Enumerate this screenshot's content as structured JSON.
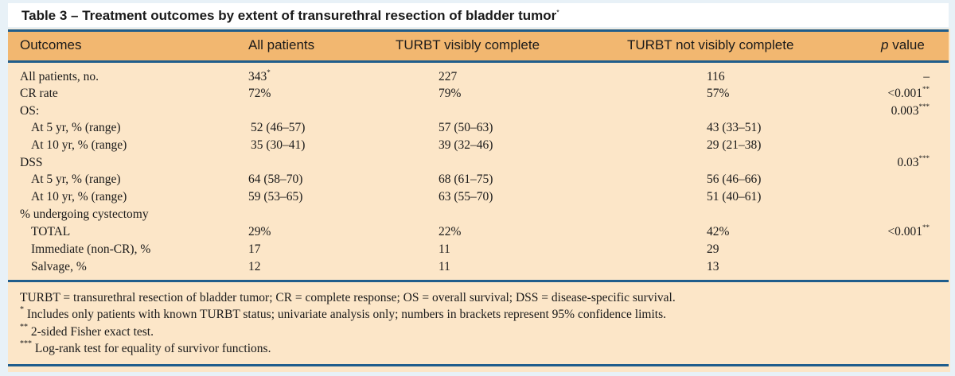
{
  "title": "Table 3 – Treatment outcomes by extent of transurethral resection of bladder tumor",
  "title_marker": "*",
  "headers": {
    "outcomes": "Outcomes",
    "all": "All patients",
    "complete": "TURBT visibly complete",
    "not_complete": "TURBT not visibly complete",
    "p_italic": "p",
    "p_rest": "value"
  },
  "rows": [
    {
      "label": "All patients, no.",
      "all": "343",
      "all_sup": "*",
      "complete": "227",
      "not_complete": "116",
      "p": "–",
      "p_sup": ""
    },
    {
      "label": "CR rate",
      "all": "72%",
      "all_sup": "",
      "complete": "79%",
      "not_complete": "57%",
      "p": "<0.001",
      "p_sup": "**"
    },
    {
      "label": "OS:",
      "all": "",
      "all_sup": "",
      "complete": "",
      "not_complete": "",
      "p": "0.003",
      "p_sup": "***"
    },
    {
      "label": "At 5 yr, % (range)",
      "all": "52 (46–57)",
      "all_sup": "",
      "complete": "57 (50–63)",
      "not_complete": "43 (33–51)",
      "p": "",
      "p_sup": ""
    },
    {
      "label": "At 10 yr, % (range)",
      "all": "35 (30–41)",
      "all_sup": "",
      "complete": "39 (32–46)",
      "not_complete": "29 (21–38)",
      "p": "",
      "p_sup": ""
    },
    {
      "label": "DSS",
      "all": "",
      "all_sup": "",
      "complete": "",
      "not_complete": "",
      "p": "0.03",
      "p_sup": "***"
    },
    {
      "label": "At 5 yr, % (range)",
      "all": "64 (58–70)",
      "all_sup": "",
      "complete": "68 (61–75)",
      "not_complete": "56 (46–66)",
      "p": "",
      "p_sup": ""
    },
    {
      "label": "At 10 yr, % (range)",
      "all": "59 (53–65)",
      "all_sup": "",
      "complete": "63 (55–70)",
      "not_complete": "51 (40–61)",
      "p": "",
      "p_sup": ""
    },
    {
      "label": "% undergoing cystectomy",
      "all": "",
      "all_sup": "",
      "complete": "",
      "not_complete": "",
      "p": "",
      "p_sup": ""
    },
    {
      "label": "TOTAL",
      "all": "29%",
      "all_sup": "",
      "complete": "22%",
      "not_complete": "42%",
      "p": "<0.001",
      "p_sup": "**"
    },
    {
      "label": "Immediate (non-CR), %",
      "all": "17",
      "all_sup": "",
      "complete": "11",
      "not_complete": "29",
      "p": "",
      "p_sup": ""
    },
    {
      "label": "Salvage, %",
      "all": "12",
      "all_sup": "",
      "complete": "11",
      "not_complete": "13",
      "p": "",
      "p_sup": ""
    }
  ],
  "footnotes": {
    "abbrev": "TURBT = transurethral resection of bladder tumor; CR = complete response; OS = overall survival; DSS = disease-specific survival.",
    "note1_mark": "*",
    "note1": " Includes only patients with known TURBT status; univariate analysis only; numbers in brackets represent 95% confidence limits.",
    "note2_mark": "**",
    "note2": " 2-sided Fisher exact test.",
    "note3_mark": "***",
    "note3": " Log-rank test for equality of survivor functions."
  }
}
